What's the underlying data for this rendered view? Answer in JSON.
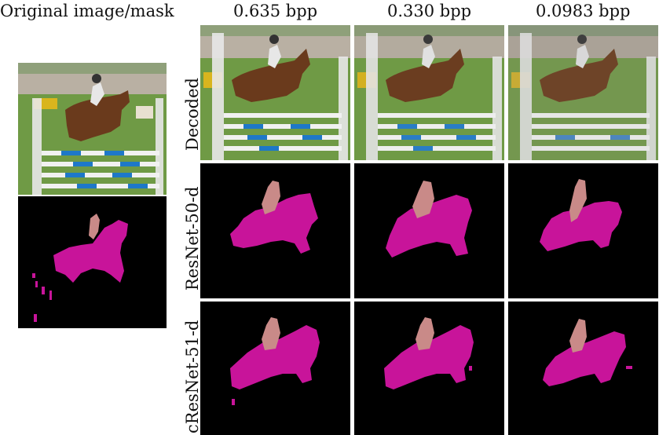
{
  "headers": {
    "original": "Original image/mask",
    "col1": "0.635 bpp",
    "col2": "0.330 bpp",
    "col3": "0.0983 bpp"
  },
  "row_labels": {
    "decoded": "Decoded",
    "resnet": "ResNet-50-d",
    "cresnet": "cResNet-51-d"
  },
  "colors": {
    "horse_mask": "#c8149a",
    "rider_mask": "#c98a88",
    "rail_blue": "#1e78c8",
    "grass": "#6f9a45",
    "horse_brown": "#6a3a1c"
  }
}
